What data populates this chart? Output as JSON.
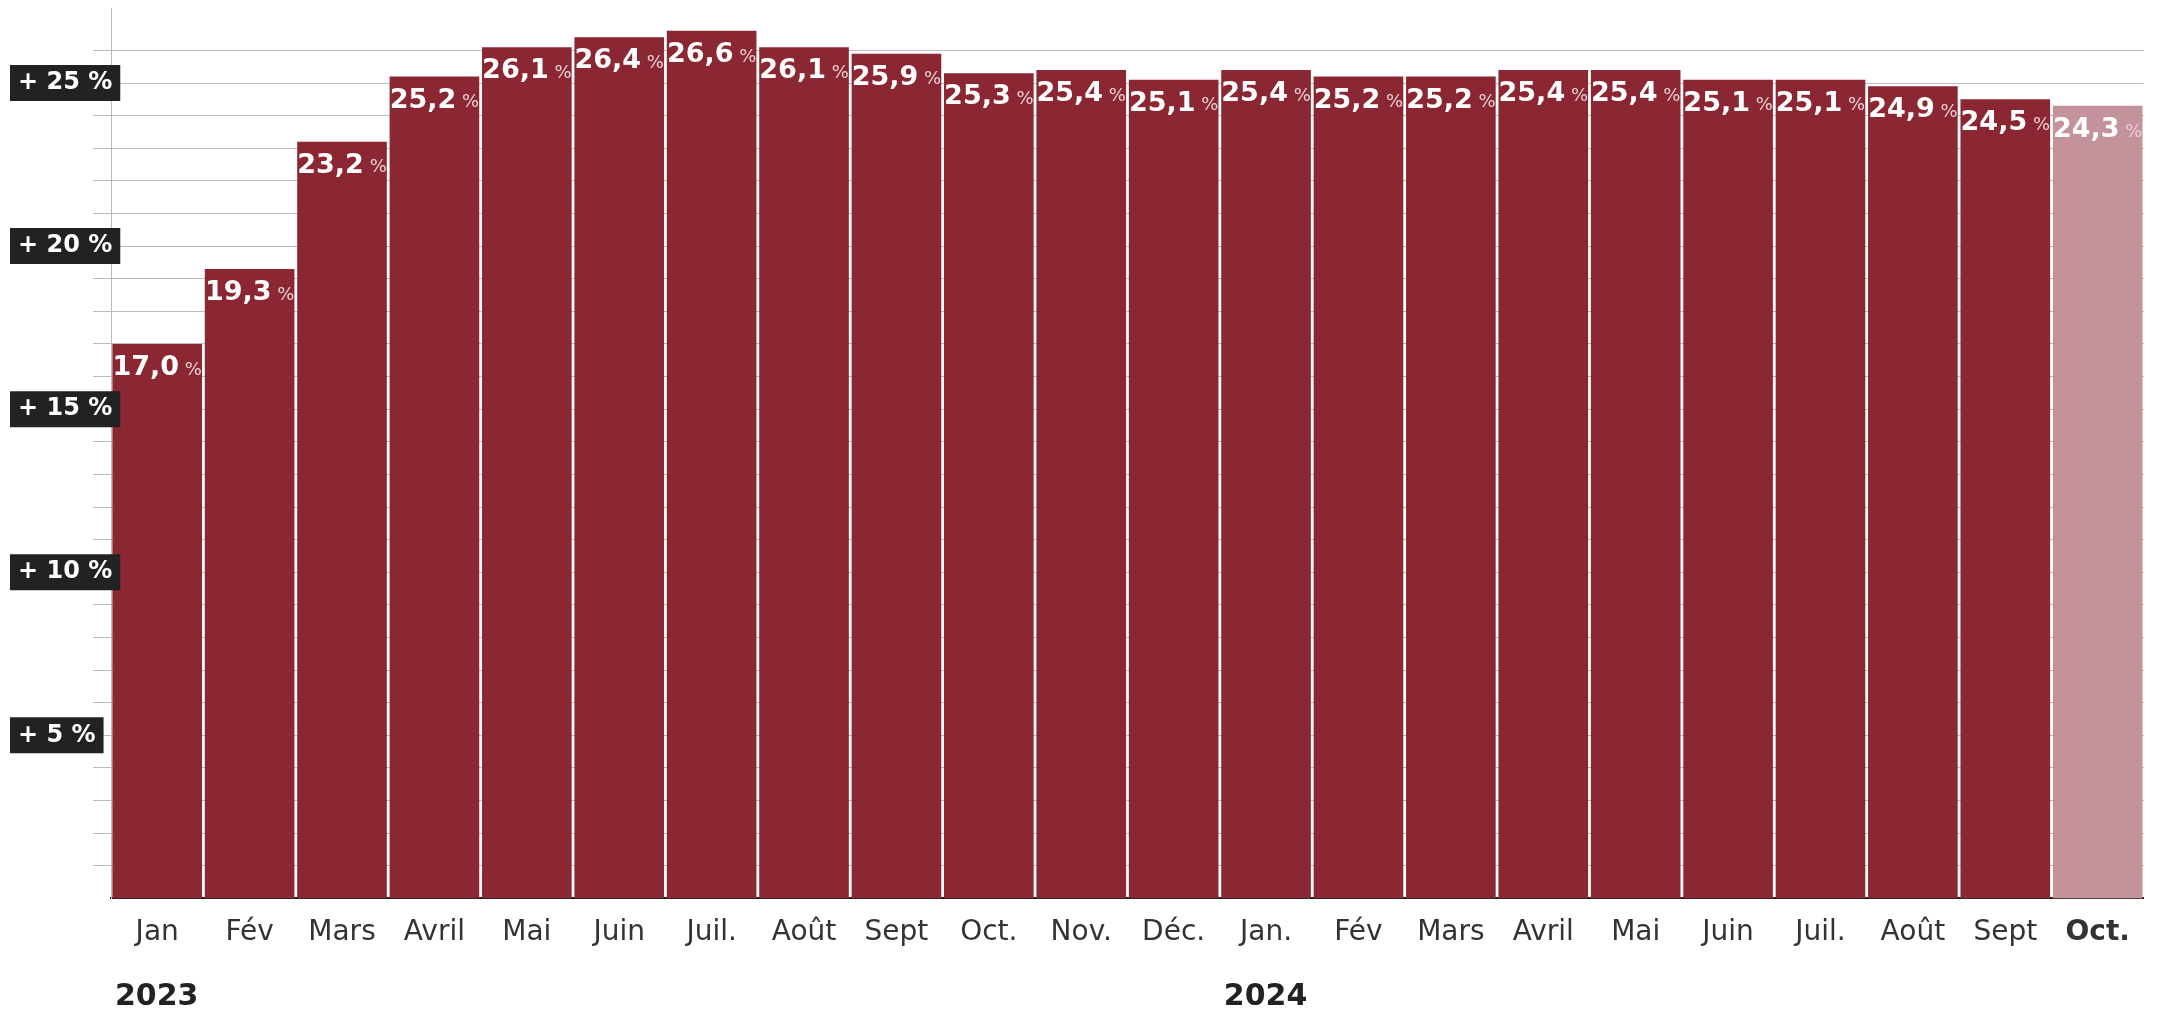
{
  "chart_data": {
    "type": "bar",
    "categories": [
      "Jan",
      "Fév",
      "Mars",
      "Avril",
      "Mai",
      "Juin",
      "Juil.",
      "Août",
      "Sept",
      "Oct.",
      "Nov.",
      "Déc.",
      "Jan.",
      "Fév",
      "Mars",
      "Avril",
      "Mai",
      "Juin",
      "Juil.",
      "Août",
      "Sept",
      "Oct."
    ],
    "values": [
      17.0,
      19.3,
      23.2,
      25.2,
      26.1,
      26.4,
      26.6,
      26.1,
      25.9,
      25.3,
      25.4,
      25.1,
      25.4,
      25.2,
      25.2,
      25.4,
      25.4,
      25.1,
      25.1,
      24.9,
      24.5,
      24.3
    ],
    "colors": [
      "#8b2633",
      "#8b2633",
      "#8b2633",
      "#8b2633",
      "#8b2633",
      "#8b2633",
      "#8b2633",
      "#8b2633",
      "#8b2633",
      "#8b2633",
      "#8b2633",
      "#8b2633",
      "#8b2633",
      "#8b2633",
      "#8b2633",
      "#8b2633",
      "#8b2633",
      "#8b2633",
      "#8b2633",
      "#8b2633",
      "#8b2633",
      "#c4929b"
    ],
    "value_labels": [
      "17,0 %",
      "19,3 %",
      "23,2 %",
      "25,2 %",
      "26,1 %",
      "26,4 %",
      "26,6 %",
      "26,1 %",
      "25,9 %",
      "25,3 %",
      "25,4 %",
      "25,1 %",
      "25,4 %",
      "25,2 %",
      "25,2 %",
      "25,4 %",
      "25,4 %",
      "25,1 %",
      "25,1 %",
      "24,9 %",
      "24,5 %",
      "24,3 %"
    ],
    "ylim": [
      0,
      27.3
    ],
    "yticks": [
      {
        "value": 1,
        "label": null
      },
      {
        "value": 2,
        "label": null
      },
      {
        "value": 3,
        "label": null
      },
      {
        "value": 4,
        "label": null
      },
      {
        "value": 5,
        "label": "+ 5 %"
      },
      {
        "value": 6,
        "label": null
      },
      {
        "value": 7,
        "label": null
      },
      {
        "value": 8,
        "label": null
      },
      {
        "value": 9,
        "label": null
      },
      {
        "value": 10,
        "label": "+ 10 %"
      },
      {
        "value": 11,
        "label": null
      },
      {
        "value": 12,
        "label": null
      },
      {
        "value": 13,
        "label": null
      },
      {
        "value": 14,
        "label": null
      },
      {
        "value": 15,
        "label": "+ 15 %"
      },
      {
        "value": 16,
        "label": null
      },
      {
        "value": 17,
        "label": null
      },
      {
        "value": 18,
        "label": null
      },
      {
        "value": 19,
        "label": null
      },
      {
        "value": 20,
        "label": "+ 20 %"
      },
      {
        "value": 21,
        "label": null
      },
      {
        "value": 22,
        "label": null
      },
      {
        "value": 23,
        "label": null
      },
      {
        "value": 24,
        "label": null
      },
      {
        "value": 25,
        "label": "+ 25 %"
      },
      {
        "value": 26,
        "label": null
      }
    ],
    "grid": "y",
    "annotations": [
      "2023",
      "2024"
    ]
  }
}
